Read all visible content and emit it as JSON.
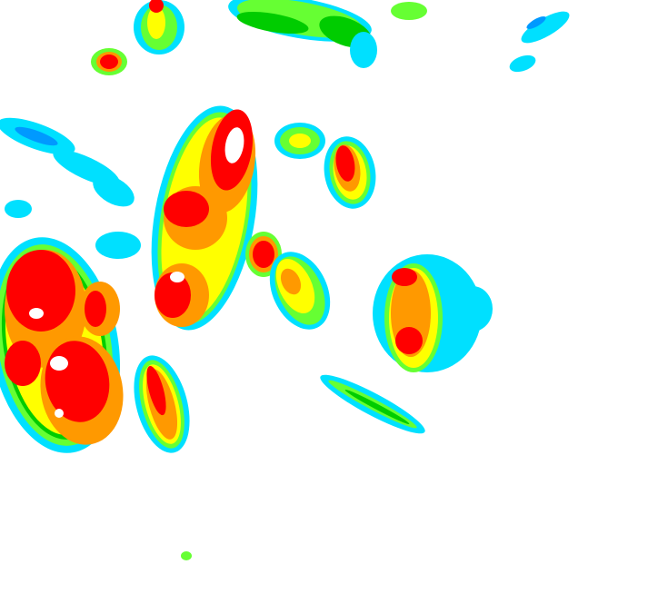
{
  "radar": {
    "background": "#ffffff",
    "reflectivity_colors": {
      "light": "#00e0ff",
      "light_blue": "#0099ff",
      "light_green": "#66ff33",
      "green": "#00cc00",
      "dark_green": "#006600",
      "yellow": "#ffff00",
      "orange": "#ff9900",
      "red": "#ff0000",
      "extreme": "#ffffff"
    }
  }
}
